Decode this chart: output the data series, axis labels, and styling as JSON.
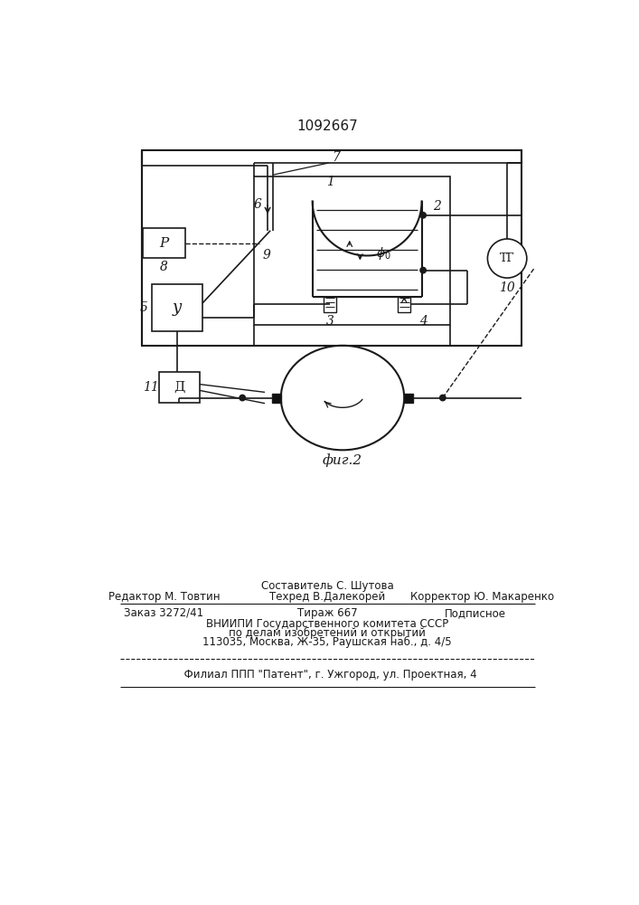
{
  "title": "1092667",
  "fig_caption": "фиг.2",
  "bg_color": "#ffffff",
  "line_color": "#1a1a1a",
  "label_1": "1",
  "label_2": "2",
  "label_3": "3",
  "label_4": "4",
  "label_5": "5",
  "label_6": "6",
  "label_7": "7",
  "label_8": "8",
  "label_9": "9",
  "label_10": "10",
  "label_11": "11",
  "label_P": "P",
  "label_Y": "y",
  "label_D": "Д",
  "label_TG": "ТГ",
  "label_phi": "$\\phi_0$",
  "footer_sestavitel": "Составитель С. Шутова",
  "footer_redaktor": "Редактор М. Товтин",
  "footer_tehred": "Техред В.Далекорей",
  "footer_korrektor": "Корректор Ю. Макаренко",
  "footer_zakaz": "Заказ 3272/41",
  "footer_tirazh": "Тираж 667",
  "footer_podp": "Подписное",
  "footer_vniip1": "ВНИИПИ Государственного комитета СССР",
  "footer_vniip2": "по делам изобретений и открытий",
  "footer_addr": "113035, Москва, Ж-35, Раушская наб., д. 4/5",
  "footer_filial": "Филиал ППП \"Патент\", г. Ужгород, ул. Проектная, 4"
}
